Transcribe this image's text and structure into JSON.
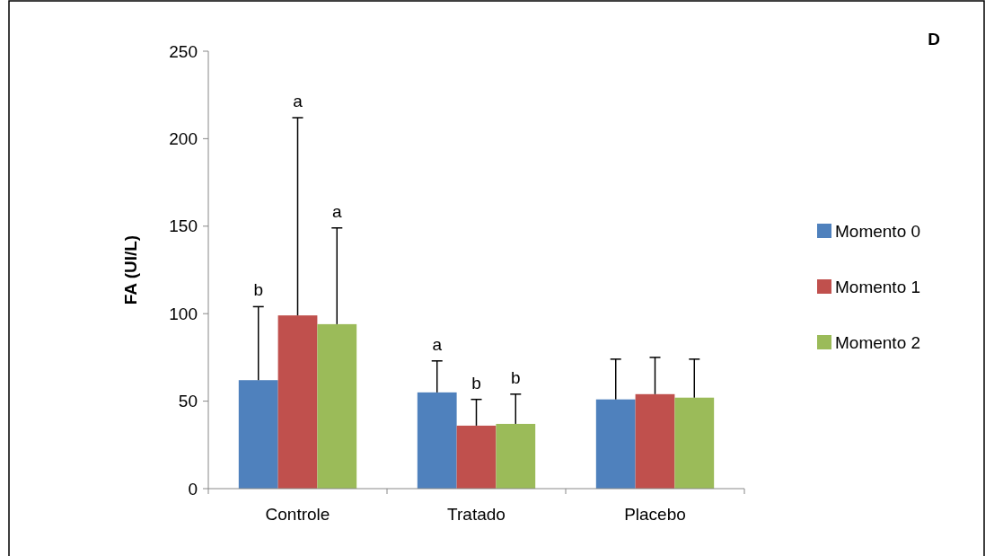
{
  "chart_data": {
    "type": "bar",
    "ylabel": "FA (UI/L)",
    "categories": [
      "Controle",
      "Tratado",
      "Placebo"
    ],
    "series": [
      {
        "name": "Momento 0",
        "color": "#4f81bd",
        "values": [
          62,
          55,
          51
        ],
        "errors": [
          [
            62,
            104
          ],
          [
            55,
            73
          ],
          [
            51,
            74
          ]
        ]
      },
      {
        "name": "Momento 1",
        "color": "#c0504d",
        "values": [
          99,
          36,
          54
        ],
        "errors": [
          [
            99,
            212
          ],
          [
            36,
            51
          ],
          [
            54,
            75
          ]
        ]
      },
      {
        "name": "Momento 2",
        "color": "#9bbb59",
        "values": [
          94,
          37,
          52
        ],
        "errors": [
          [
            94,
            149
          ],
          [
            37,
            54
          ],
          [
            52,
            74
          ]
        ]
      }
    ],
    "ylim": [
      0,
      250
    ],
    "yticks": [
      0,
      50,
      100,
      150,
      200,
      250
    ],
    "grid": false,
    "legend": "right",
    "annotations": [
      "D",
      "b",
      "a",
      "a",
      "a",
      "b",
      "b"
    ]
  }
}
